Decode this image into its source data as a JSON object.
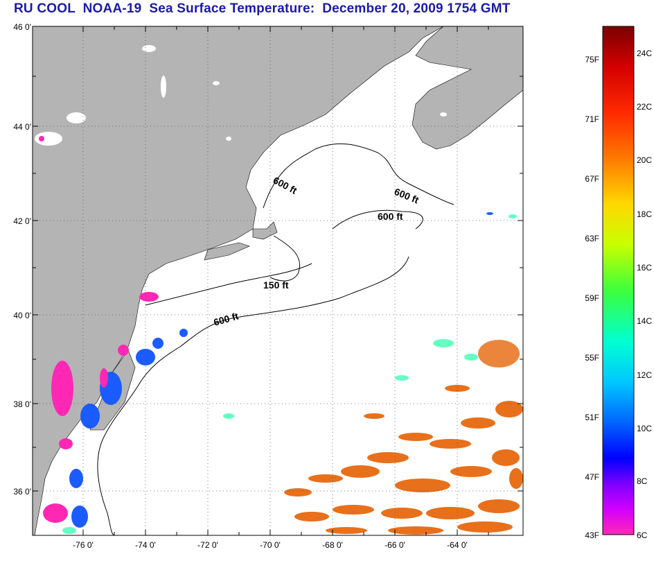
{
  "title": "RU COOL  NOAA-19  Sea Surface Temperature:  December 20, 2009 1754 GMT",
  "map": {
    "lat_ticks": [
      "46 0'",
      "44 0'",
      "42 0'",
      "40 0'",
      "38 0'",
      "36 0'"
    ],
    "lon_ticks": [
      "-76 0'",
      "-74 0'",
      "-72 0'",
      "-70 0'",
      "-68 0'",
      "-66 0'",
      "-64 0'"
    ],
    "contour_labels": [
      "600 ft",
      "600 ft",
      "600 ft",
      "150 ft",
      "600 ft"
    ],
    "colors": {
      "land": "#b4b4b4",
      "ocean": "#ffffff",
      "warm_water": "#e8701a",
      "frame": "#000000"
    }
  },
  "legend": {
    "fahrenheit": [
      "75F",
      "71F",
      "67F",
      "63F",
      "59F",
      "55F",
      "51F",
      "47F",
      "43F"
    ],
    "celsius": [
      "24C",
      "22C",
      "20C",
      "18C",
      "16C",
      "14C",
      "12C",
      "10C",
      "8C",
      "6C"
    ],
    "gradient_stops": [
      "#7a0000",
      "#d40000",
      "#ff2a00",
      "#ff7a00",
      "#ffd800",
      "#c8ff00",
      "#3cff3c",
      "#00ffd2",
      "#00c8ff",
      "#0064ff",
      "#0000ff",
      "#7b00ff",
      "#d200ff",
      "#ff28b4"
    ]
  }
}
